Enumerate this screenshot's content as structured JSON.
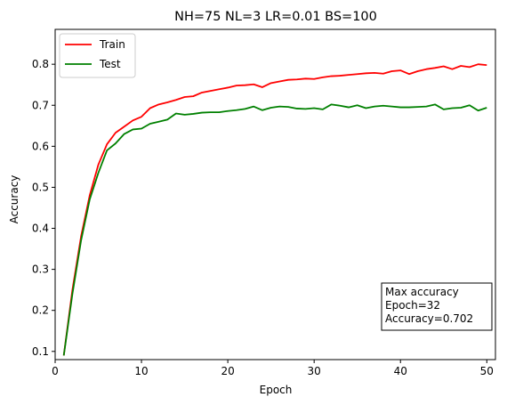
{
  "chart_data": {
    "type": "line",
    "title": "NH=75 NL=3 LR=0.01 BS=100",
    "xlabel": "Epoch",
    "ylabel": "Accuracy",
    "xlim": [
      0,
      51
    ],
    "ylim": [
      0.08,
      0.885
    ],
    "xticks": [
      "0",
      "10",
      "20",
      "30",
      "40",
      "50"
    ],
    "yticks": [
      "0.1",
      "0.2",
      "0.3",
      "0.4",
      "0.5",
      "0.6",
      "0.7",
      "0.8"
    ],
    "grid": false,
    "legend_position": "top-left",
    "x": [
      1,
      2,
      3,
      4,
      5,
      6,
      7,
      8,
      9,
      10,
      11,
      12,
      13,
      14,
      15,
      16,
      17,
      18,
      19,
      20,
      21,
      22,
      23,
      24,
      25,
      26,
      27,
      28,
      29,
      30,
      31,
      32,
      33,
      34,
      35,
      36,
      37,
      38,
      39,
      40,
      41,
      42,
      43,
      44,
      45,
      46,
      47,
      48,
      49,
      50
    ],
    "series": [
      {
        "name": "Train",
        "color": "#ff0000",
        "values": [
          0.09,
          0.25,
          0.38,
          0.48,
          0.555,
          0.605,
          0.633,
          0.648,
          0.663,
          0.672,
          0.693,
          0.702,
          0.707,
          0.713,
          0.72,
          0.722,
          0.731,
          0.735,
          0.739,
          0.743,
          0.748,
          0.749,
          0.751,
          0.744,
          0.754,
          0.758,
          0.762,
          0.763,
          0.765,
          0.764,
          0.768,
          0.771,
          0.772,
          0.774,
          0.776,
          0.778,
          0.779,
          0.777,
          0.783,
          0.785,
          0.776,
          0.783,
          0.788,
          0.791,
          0.795,
          0.788,
          0.796,
          0.793,
          0.8,
          0.798
        ]
      },
      {
        "name": "Test",
        "color": "#008000",
        "values": [
          0.09,
          0.24,
          0.37,
          0.47,
          0.535,
          0.59,
          0.607,
          0.63,
          0.641,
          0.643,
          0.655,
          0.66,
          0.665,
          0.68,
          0.677,
          0.679,
          0.682,
          0.683,
          0.683,
          0.686,
          0.688,
          0.691,
          0.697,
          0.688,
          0.694,
          0.697,
          0.696,
          0.692,
          0.691,
          0.693,
          0.69,
          0.702,
          0.699,
          0.695,
          0.7,
          0.693,
          0.697,
          0.699,
          0.697,
          0.695,
          0.695,
          0.696,
          0.697,
          0.702,
          0.69,
          0.693,
          0.694,
          0.7,
          0.687,
          0.694
        ]
      }
    ],
    "annotation": {
      "position": "bottom-right",
      "lines": [
        "Max accuracy",
        "Epoch=32",
        "Accuracy=0.702"
      ]
    }
  }
}
